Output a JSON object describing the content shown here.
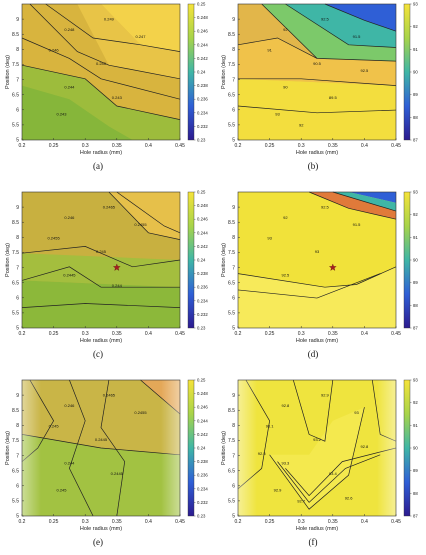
{
  "chart_data": [
    {
      "type": "heatmap",
      "panel": "(a)",
      "xlabel": "Hole radius (mm)",
      "ylabel": "Position (deg)",
      "xticks": [
        "0.2",
        "0.25",
        "0.3",
        "0.35",
        "0.4",
        "0.45"
      ],
      "yticks": [
        "5",
        "5.5",
        "6",
        "6.5",
        "7",
        "7.5",
        "8",
        "8.5",
        "9"
      ],
      "xlim": [
        0.2,
        0.45
      ],
      "ylim": [
        5,
        9.5
      ],
      "colorbar_ticks": [
        "0.23",
        "0.232",
        "0.234",
        "0.236",
        "0.238",
        "0.24",
        "0.242",
        "0.244",
        "0.246",
        "0.248",
        "0.25"
      ],
      "colorbar_range": [
        0.23,
        0.25
      ],
      "contour_labels": [
        "0.249",
        "0.248",
        "0.247",
        "0.246",
        "0.245",
        "0.244",
        "0.243",
        "0.243"
      ],
      "colors": {
        "low": "#2c1a8f",
        "mid": "#3fb6a6",
        "high": "#f5e33a",
        "fill": "#d8b43e"
      },
      "has_star": false,
      "highlight": false
    },
    {
      "type": "heatmap",
      "panel": "(b)",
      "xlabel": "Hole radius (mm)",
      "ylabel": "Position (deg)",
      "xticks": [
        "0.2",
        "0.25",
        "0.3",
        "0.35",
        "0.4",
        "0.45"
      ],
      "yticks": [
        "5",
        "5.5",
        "6",
        "6.5",
        "7",
        "7.5",
        "8",
        "8.5",
        "9"
      ],
      "xlim": [
        0.2,
        0.45
      ],
      "ylim": [
        5,
        9.5
      ],
      "colorbar_ticks": [
        "87",
        "88",
        "89",
        "90",
        "91",
        "92",
        "93"
      ],
      "colorbar_range": [
        87,
        93
      ],
      "contour_labels": [
        "92.5",
        "92",
        "91.5",
        "91",
        "90.5",
        "90",
        "89.5",
        "93",
        "92.5",
        "92"
      ],
      "colors": {
        "low": "#2c1a8f",
        "mid": "#3fb6a6",
        "high": "#f5e33a",
        "fill": "#e2b64a"
      },
      "has_star": false,
      "highlight": false
    },
    {
      "type": "heatmap",
      "panel": "(c)",
      "xlabel": "Hole radius (mm)",
      "ylabel": "Position (deg)",
      "xticks": [
        "0.2",
        "0.25",
        "0.3",
        "0.35",
        "0.4",
        "0.45"
      ],
      "yticks": [
        "5",
        "5.5",
        "6",
        "6.5",
        "7",
        "7.5",
        "8",
        "8.5",
        "9"
      ],
      "xlim": [
        0.2,
        0.45
      ],
      "ylim": [
        5,
        9.5
      ],
      "colorbar_ticks": [
        "0.23",
        "0.232",
        "0.234",
        "0.236",
        "0.238",
        "0.24",
        "0.242",
        "0.244",
        "0.246",
        "0.248",
        "0.25"
      ],
      "colorbar_range": [
        0.23,
        0.25
      ],
      "contour_labels": [
        "0.2465",
        "0.246",
        "0.2455",
        "0.2455",
        "0.245",
        "0.2445",
        "0.244"
      ],
      "colors": {
        "low": "#2c1a8f",
        "mid": "#3fb6a6",
        "high": "#f5e33a",
        "fill": "#c8b040"
      },
      "has_star": true,
      "star": {
        "x": 0.35,
        "y": 7
      },
      "highlight": false
    },
    {
      "type": "heatmap",
      "panel": "(d)",
      "xlabel": "Hole radius (mm)",
      "ylabel": "Position (deg)",
      "xticks": [
        "0.2",
        "0.25",
        "0.3",
        "0.35",
        "0.4",
        "0.45"
      ],
      "yticks": [
        "5",
        "5.5",
        "6",
        "6.5",
        "7",
        "7.5",
        "8",
        "8.5",
        "9"
      ],
      "xlim": [
        0.2,
        0.45
      ],
      "ylim": [
        5,
        9.5
      ],
      "colorbar_ticks": [
        "87",
        "88",
        "89",
        "90",
        "91",
        "92",
        "93"
      ],
      "colorbar_range": [
        87,
        93
      ],
      "contour_labels": [
        "92.5",
        "92",
        "91.5",
        "93",
        "93",
        "92.5"
      ],
      "colors": {
        "low": "#2c1a8f",
        "mid": "#3fb6a6",
        "high": "#f5e33a",
        "fill": "#f1e23a"
      },
      "has_star": true,
      "star": {
        "x": 0.35,
        "y": 7
      },
      "highlight": false
    },
    {
      "type": "heatmap",
      "panel": "(e)",
      "xlabel": "Hole radius (mm)",
      "ylabel": "Position (deg)",
      "xticks": [
        "0.2",
        "0.25",
        "0.3",
        "0.35",
        "0.4",
        "0.45"
      ],
      "yticks": [
        "5",
        "5.5",
        "6",
        "6.5",
        "7",
        "7.5",
        "8",
        "8.5",
        "9"
      ],
      "xlim": [
        0.2,
        0.45
      ],
      "ylim": [
        5,
        9.5
      ],
      "colorbar_ticks": [
        "0.23",
        "0.232",
        "0.234",
        "0.236",
        "0.238",
        "0.24",
        "0.242",
        "0.244",
        "0.246",
        "0.248",
        "0.25"
      ],
      "colorbar_range": [
        0.23,
        0.25
      ],
      "contour_labels": [
        "0.2465",
        "0.246",
        "0.2455",
        "0.245",
        "0.2445",
        "0.244",
        "0.2445",
        "0.245"
      ],
      "colors": {
        "low": "#2c1a8f",
        "mid": "#3fb6a6",
        "high": "#f5e33a",
        "fill": "#c4b246"
      },
      "has_star": false,
      "highlight": true
    },
    {
      "type": "heatmap",
      "panel": "(f)",
      "xlabel": "Hole radius (mm)",
      "ylabel": "Position (deg)",
      "xticks": [
        "0.2",
        "0.25",
        "0.3",
        "0.35",
        "0.4",
        "0.45"
      ],
      "yticks": [
        "5",
        "5.5",
        "6",
        "6.5",
        "7",
        "7.5",
        "8",
        "8.5",
        "9"
      ],
      "xlim": [
        0.2,
        0.45
      ],
      "ylim": [
        5,
        9.5
      ],
      "colorbar_ticks": [
        "87",
        "88",
        "89",
        "90",
        "91",
        "92",
        "93"
      ],
      "colorbar_range": [
        87,
        93
      ],
      "contour_labels": [
        "92.9",
        "92.8",
        "93",
        "93.1",
        "93.2",
        "93.3",
        "93.4",
        "92.9",
        "92.8",
        "92.7",
        "92.6",
        "92.5"
      ],
      "colors": {
        "low": "#2c1a8f",
        "mid": "#3fb6a6",
        "high": "#f5e33a",
        "fill": "#efe43e"
      },
      "has_star": false,
      "highlight": true
    }
  ]
}
